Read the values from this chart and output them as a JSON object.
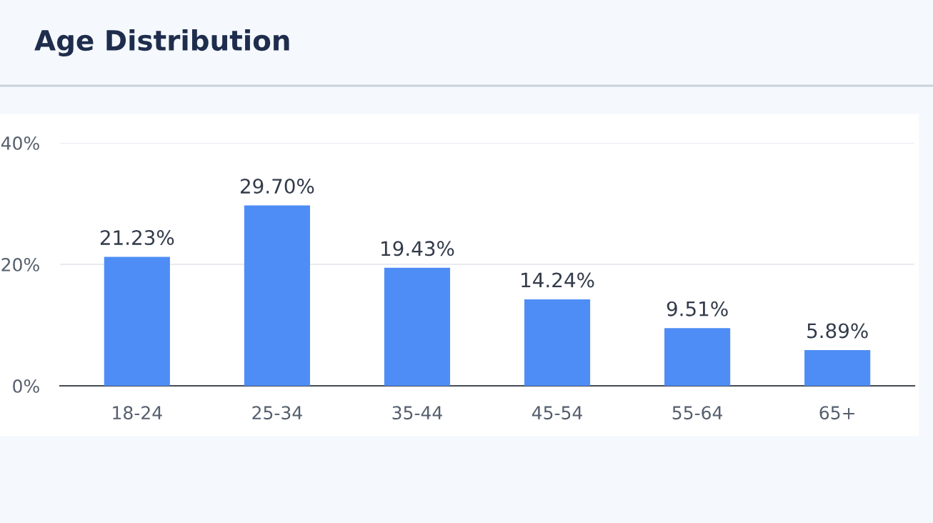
{
  "chart_data": {
    "type": "bar",
    "title": "Age Distribution",
    "categories": [
      "18-24",
      "25-34",
      "35-44",
      "45-54",
      "55-64",
      "65+"
    ],
    "values": [
      21.23,
      29.7,
      19.43,
      14.24,
      9.51,
      5.89
    ],
    "value_labels": [
      "21.23%",
      "29.70%",
      "19.43%",
      "14.24%",
      "9.51%",
      "5.89%"
    ],
    "color": "#4e8df5",
    "ylim": [
      0,
      40
    ],
    "yticks": [
      {
        "value": 0,
        "label": "0%"
      },
      {
        "value": 20,
        "label": "20%"
      },
      {
        "value": 40,
        "label": "40%"
      }
    ],
    "grid": "y"
  }
}
